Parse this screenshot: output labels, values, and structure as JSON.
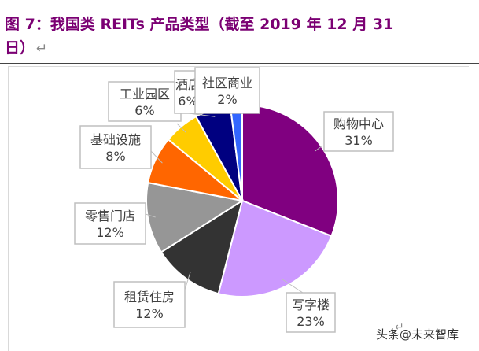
{
  "figure": {
    "title_line1": "图 7：我国类 REITs 产品类型（截至 2019 年 12 月 31",
    "title_line2": "日）",
    "return_mark": "↵",
    "bottom_return_mark": "↵"
  },
  "watermark": {
    "text": "头条@未来智库"
  },
  "chart_data": {
    "type": "pie",
    "title": "",
    "start_angle_deg": 0,
    "direction": "clockwise",
    "label_style": "callout boxes with category name and percentage",
    "slices": [
      {
        "label": "购物中心",
        "value": 31,
        "value_label": "31%",
        "color": "#800080"
      },
      {
        "label": "写字楼",
        "value": 23,
        "value_label": "23%",
        "color": "#cc99ff"
      },
      {
        "label": "租赁住房",
        "value": 12,
        "value_label": "12%",
        "color": "#333333"
      },
      {
        "label": "零售门店",
        "value": 12,
        "value_label": "12%",
        "color": "#969696"
      },
      {
        "label": "基础设施",
        "value": 8,
        "value_label": "8%",
        "color": "#ff6600"
      },
      {
        "label": "工业园区",
        "value": 6,
        "value_label": "6%",
        "color": "#ffcc00"
      },
      {
        "label": "酒店",
        "value": 6,
        "value_label": "6%",
        "color": "#000080",
        "label_display": "酒店"
      },
      {
        "label": "社区商业",
        "value": 2,
        "value_label": "2%",
        "color": "#3366ff"
      }
    ]
  }
}
